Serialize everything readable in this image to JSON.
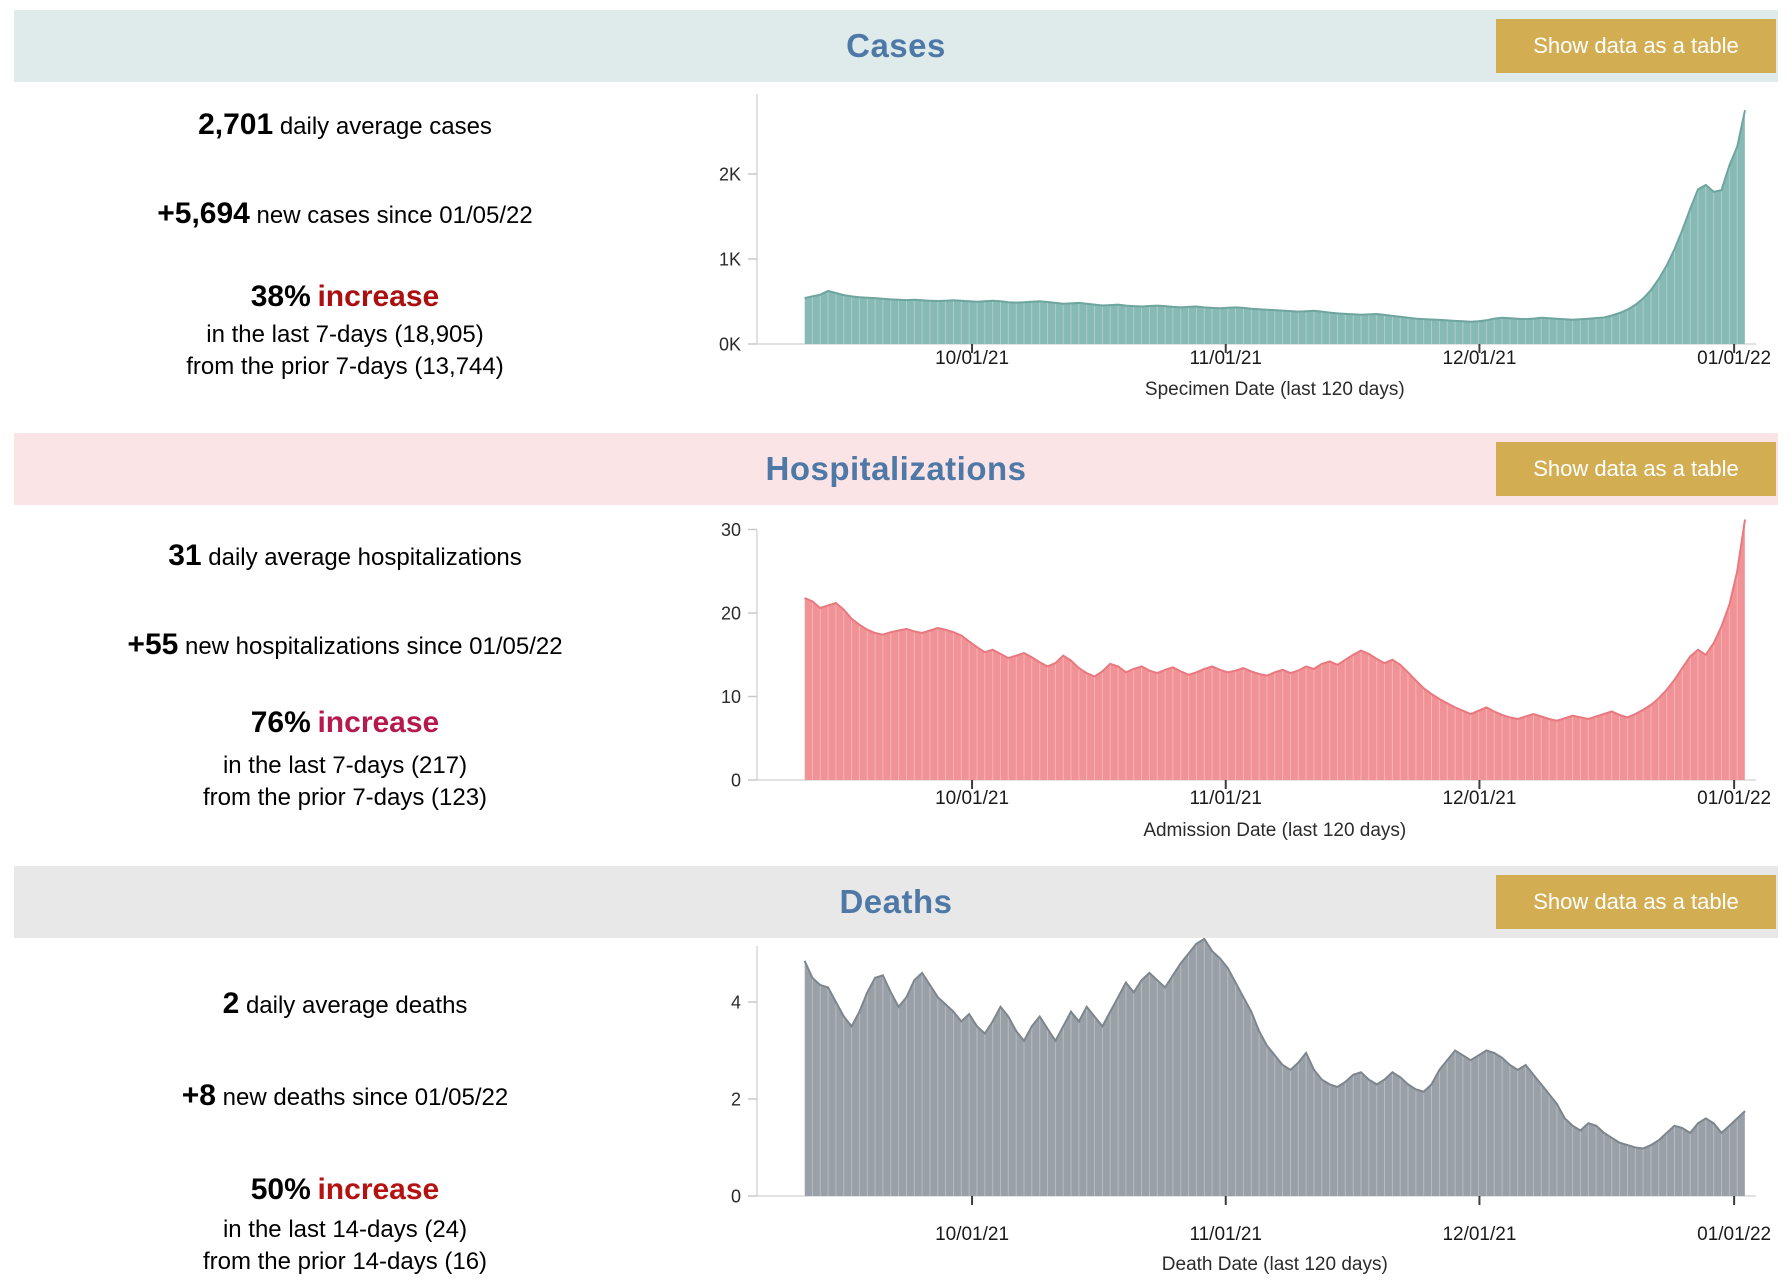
{
  "sections": [
    {
      "id": "cases",
      "title": "Cases",
      "button_label": "Show data as a table",
      "band_color": "#dfeaeb",
      "title_color": "#4e79a7",
      "button_color": "#d3ad52",
      "stat1_value": "2,701",
      "stat1_label": "daily average cases",
      "stat2_value": "+5,694",
      "stat2_label": "new cases since 01/05/22",
      "pct_value": "38%",
      "pct_word": "increase",
      "pct_color": "#ac0f0f",
      "sub1": "in the last 7-days (18,905)",
      "sub2": "from the prior 7-days (13,744)"
    },
    {
      "id": "hospitalizations",
      "title": "Hospitalizations",
      "button_label": "Show data as a table",
      "band_color": "#fbe4e6",
      "title_color": "#4e79a7",
      "button_color": "#d3ad52",
      "stat1_value": "31",
      "stat1_label": "daily average hospitalizations",
      "stat2_value": "+55",
      "stat2_label": "new hospitalizations since 01/05/22",
      "pct_value": "76%",
      "pct_word": "increase",
      "pct_color": "#b61a4c",
      "sub1": "in the last 7-days (217)",
      "sub2": "from the prior 7-days (123)"
    },
    {
      "id": "deaths",
      "title": "Deaths",
      "button_label": "Show data as a table",
      "band_color": "#e8e8e9",
      "title_color": "#4e79a7",
      "button_color": "#d3ad52",
      "stat1_value": "2",
      "stat1_label": "daily average deaths",
      "stat2_value": "+8",
      "stat2_label": "new deaths since 01/05/22",
      "pct_value": "50%",
      "pct_word": "increase",
      "pct_color": "#b41312",
      "sub1": "in the last 14-days (24)",
      "sub2": "from the prior 14-days (16)"
    }
  ],
  "chart_data": [
    {
      "type": "area",
      "title": "Cases",
      "xlabel": "Specimen Date (last 120 days)",
      "x_ticks": [
        "10/01/21",
        "11/01/21",
        "12/01/21",
        "01/01/22"
      ],
      "y_ticks": [
        {
          "value": 0,
          "label": "0K"
        },
        {
          "value": 1000,
          "label": "1K"
        },
        {
          "value": 2000,
          "label": "2K"
        }
      ],
      "ylim": [
        0,
        2750
      ],
      "fill": "#87b9b5",
      "line": "#6ea59f",
      "values": [
        540,
        560,
        580,
        625,
        600,
        575,
        560,
        550,
        545,
        540,
        532,
        525,
        520,
        516,
        520,
        514,
        510,
        506,
        510,
        514,
        508,
        502,
        497,
        503,
        508,
        502,
        492,
        487,
        492,
        498,
        502,
        494,
        483,
        473,
        478,
        483,
        473,
        463,
        453,
        458,
        463,
        452,
        446,
        441,
        447,
        452,
        446,
        436,
        430,
        436,
        441,
        430,
        425,
        420,
        426,
        431,
        425,
        415,
        409,
        404,
        399,
        393,
        387,
        381,
        386,
        391,
        381,
        370,
        360,
        354,
        349,
        343,
        348,
        353,
        342,
        331,
        320,
        309,
        299,
        293,
        288,
        283,
        278,
        272,
        267,
        262,
        268,
        279,
        299,
        309,
        304,
        298,
        293,
        299,
        309,
        304,
        296,
        290,
        286,
        290,
        298,
        305,
        312,
        335,
        365,
        405,
        460,
        535,
        635,
        765,
        925,
        1115,
        1340,
        1590,
        1820,
        1870,
        1790,
        1810,
        2100,
        2320,
        2750
      ]
    },
    {
      "type": "area",
      "title": "Hospitalizations",
      "xlabel": "Admission Date (last 120 days)",
      "x_ticks": [
        "10/01/21",
        "11/01/21",
        "12/01/21",
        "01/01/22"
      ],
      "y_ticks": [
        {
          "value": 0,
          "label": "0"
        },
        {
          "value": 10,
          "label": "10"
        },
        {
          "value": 20,
          "label": "20"
        },
        {
          "value": 30,
          "label": "30"
        }
      ],
      "ylim": [
        0,
        31.5
      ],
      "fill": "#f19396",
      "line": "#e8797f",
      "values": [
        21.8,
        21.4,
        20.6,
        20.9,
        21.2,
        20.4,
        19.3,
        18.6,
        18.0,
        17.6,
        17.4,
        17.7,
        17.9,
        18.1,
        17.8,
        17.6,
        17.9,
        18.2,
        18.0,
        17.7,
        17.3,
        16.6,
        15.9,
        15.3,
        15.6,
        15.1,
        14.6,
        14.9,
        15.2,
        14.7,
        14.1,
        13.6,
        14.0,
        14.9,
        14.3,
        13.4,
        12.8,
        12.4,
        13.0,
        13.9,
        13.6,
        12.9,
        13.3,
        13.6,
        13.1,
        12.8,
        13.2,
        13.5,
        13.0,
        12.6,
        12.9,
        13.3,
        13.6,
        13.2,
        12.9,
        13.1,
        13.4,
        13.0,
        12.7,
        12.5,
        12.9,
        13.2,
        12.8,
        13.1,
        13.6,
        13.3,
        13.9,
        14.2,
        13.8,
        14.4,
        15.0,
        15.5,
        15.1,
        14.5,
        14.0,
        14.4,
        13.8,
        12.9,
        11.9,
        11.0,
        10.3,
        9.7,
        9.2,
        8.7,
        8.3,
        7.9,
        8.3,
        8.7,
        8.2,
        7.8,
        7.5,
        7.3,
        7.6,
        7.9,
        7.6,
        7.3,
        7.1,
        7.4,
        7.7,
        7.5,
        7.3,
        7.6,
        7.9,
        8.2,
        7.8,
        7.5,
        7.9,
        8.4,
        9.0,
        9.8,
        10.8,
        12.0,
        13.4,
        14.8,
        15.6,
        15.0,
        16.4,
        18.4,
        21.0,
        25.0,
        31.2
      ]
    },
    {
      "type": "area",
      "title": "Deaths",
      "xlabel": "Death Date (last 120 days)",
      "x_ticks": [
        "10/01/21",
        "11/01/21",
        "12/01/21",
        "01/01/22"
      ],
      "y_ticks": [
        {
          "value": 0,
          "label": "0"
        },
        {
          "value": 2,
          "label": "2"
        },
        {
          "value": 4,
          "label": "4"
        }
      ],
      "ylim": [
        0,
        5.4
      ],
      "fill": "#9aa0a7",
      "line": "#7d858d",
      "values": [
        4.85,
        4.5,
        4.35,
        4.3,
        4.0,
        3.7,
        3.5,
        3.8,
        4.2,
        4.5,
        4.55,
        4.2,
        3.9,
        4.1,
        4.45,
        4.6,
        4.35,
        4.1,
        3.95,
        3.8,
        3.6,
        3.75,
        3.5,
        3.35,
        3.6,
        3.9,
        3.7,
        3.4,
        3.2,
        3.5,
        3.7,
        3.45,
        3.2,
        3.5,
        3.8,
        3.6,
        3.9,
        3.7,
        3.5,
        3.8,
        4.1,
        4.4,
        4.2,
        4.45,
        4.6,
        4.45,
        4.3,
        4.55,
        4.8,
        5.0,
        5.2,
        5.3,
        5.05,
        4.9,
        4.7,
        4.4,
        4.1,
        3.8,
        3.4,
        3.1,
        2.9,
        2.7,
        2.6,
        2.75,
        2.95,
        2.6,
        2.4,
        2.3,
        2.25,
        2.35,
        2.5,
        2.55,
        2.4,
        2.3,
        2.4,
        2.55,
        2.45,
        2.3,
        2.2,
        2.15,
        2.3,
        2.6,
        2.8,
        3.0,
        2.9,
        2.8,
        2.9,
        3.0,
        2.95,
        2.85,
        2.7,
        2.6,
        2.7,
        2.5,
        2.3,
        2.1,
        1.9,
        1.6,
        1.45,
        1.35,
        1.5,
        1.45,
        1.3,
        1.2,
        1.1,
        1.05,
        1.0,
        0.98,
        1.05,
        1.15,
        1.3,
        1.45,
        1.4,
        1.3,
        1.5,
        1.6,
        1.5,
        1.3,
        1.45,
        1.6,
        1.75
      ]
    }
  ]
}
